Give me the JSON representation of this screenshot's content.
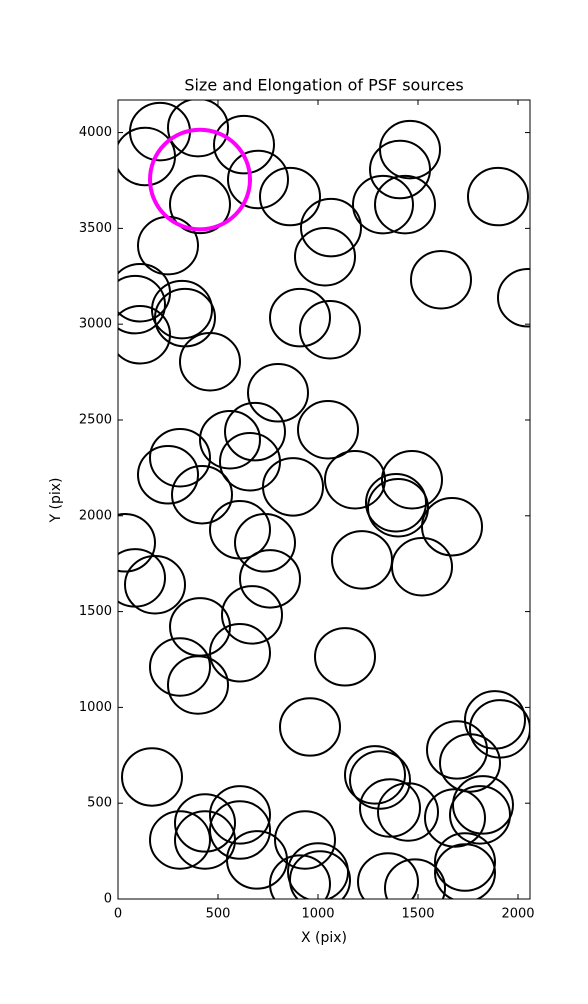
{
  "chart_data": {
    "type": "scatter",
    "title": "Size and Elongation of PSF sources",
    "xlabel": "X (pix)",
    "ylabel": "Y (pix)",
    "xlim": [
      0,
      2060
    ],
    "ylim": [
      0,
      4170
    ],
    "xticks": [
      0,
      500,
      1000,
      1500,
      2000
    ],
    "yticks": [
      0,
      500,
      1000,
      1500,
      2000,
      2500,
      3000,
      3500,
      4000
    ],
    "series": [
      {
        "color": "#000000",
        "ellipse_width": 300,
        "ellipse_height": 300,
        "x": [
          210,
          400,
          630,
          135,
          700,
          410,
          860,
          250,
          1065,
          1035,
          1460,
          1410,
          1325,
          1435,
          1900,
          1615,
          2050,
          110,
          85,
          320,
          335,
          110,
          460,
          910,
          1060,
          800,
          1050,
          560,
          685,
          660,
          310,
          250,
          420,
          875,
          1185,
          1470,
          1400,
          1390,
          1670,
          610,
          735,
          35,
          85,
          185,
          1220,
          1520,
          760,
          670,
          410,
          610,
          1135,
          310,
          400,
          960,
          1885,
          1910,
          1695,
          1760,
          170,
          1285,
          1310,
          1360,
          1450,
          1685,
          1825,
          1810,
          610,
          610,
          435,
          435,
          310,
          935,
          695,
          1735,
          1735,
          1000,
          1010,
          910,
          1350,
          1485
        ],
        "values": [
          4005,
          4026,
          3937,
          3875,
          3755,
          3625,
          3666,
          3410,
          3504,
          3352,
          3911,
          3807,
          3624,
          3624,
          3666,
          3232,
          3138,
          3164,
          3102,
          3076,
          3034,
          2945,
          2804,
          3034,
          2971,
          2642,
          2449,
          2397,
          2439,
          2282,
          2303,
          2214,
          2110,
          2151,
          2188,
          2188,
          2042,
          2068,
          1943,
          1927,
          1859,
          1859,
          1676,
          1640,
          1770,
          1734,
          1671,
          1483,
          1420,
          1285,
          1264,
          1211,
          1117,
          898,
          935,
          888,
          778,
          710,
          637,
          648,
          621,
          475,
          454,
          423,
          491,
          439,
          439,
          360,
          397,
          308,
          308,
          308,
          204,
          193,
          136,
          141,
          99,
          78,
          89,
          57
        ]
      },
      {
        "color": "#ff00ff",
        "ellipse_width": 500,
        "ellipse_height": 520,
        "x": [
          410
        ],
        "values": [
          3755
        ]
      }
    ]
  }
}
